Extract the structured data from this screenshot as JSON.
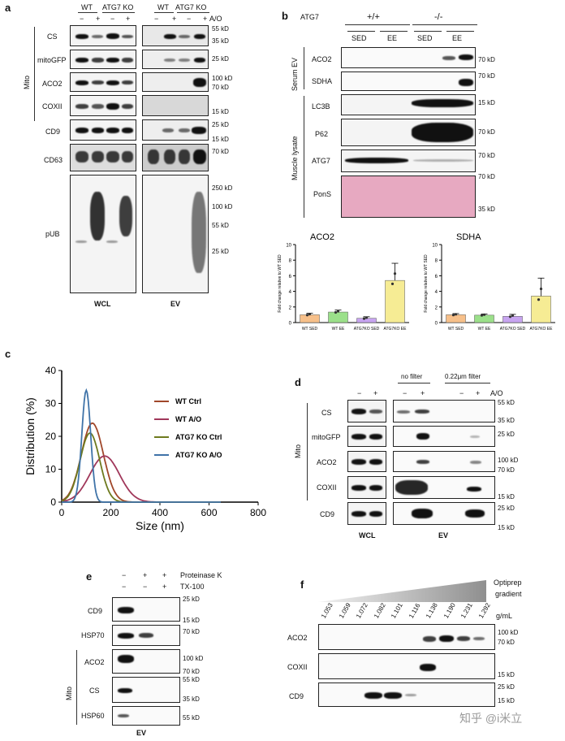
{
  "panel_labels": {
    "a": "a",
    "b": "b",
    "c": "c",
    "d": "d",
    "e": "e",
    "f": "f"
  },
  "panel_a": {
    "group_wt": "WT",
    "group_atg7ko": "ATG7 KO",
    "minus": "−",
    "plus": "+",
    "ao": "A/O",
    "mito_label": "Mito",
    "rows": [
      "CS",
      "mitoGFP",
      "ACO2",
      "COXII",
      "CD9",
      "CD63",
      "pUB"
    ],
    "markers_kd": [
      "55 kD",
      "35 kD",
      "25 kD",
      "100 kD",
      "70 kD",
      "15 kD",
      "25 kD",
      "15 kD",
      "70 kD",
      "250 kD",
      "100 kD",
      "55 kD",
      "25 kD"
    ],
    "wcl": "WCL",
    "ev": "EV"
  },
  "panel_b": {
    "atg7": "ATG7",
    "wt": "+/+",
    "ko": "-/-",
    "sed": "SED",
    "ee": "EE",
    "serum_ev": "Serum EV",
    "muscle": "Muscle lysate",
    "rows": [
      "ACO2",
      "SDHA",
      "LC3B",
      "P62",
      "ATG7",
      "PonS"
    ],
    "markers_kd": [
      "70 kD",
      "70 kD",
      "15 kD",
      "70 kD",
      "70 kD",
      "70 kD",
      "35 kD"
    ]
  },
  "chart_data": [
    {
      "type": "bar",
      "title": "ACO2",
      "categories": [
        "WT SED",
        "WT EE",
        "ATG7KO SED",
        "ATG7KO EE"
      ],
      "values": [
        1.0,
        1.35,
        0.55,
        5.4
      ],
      "errors": [
        0.2,
        0.25,
        0.2,
        2.2
      ],
      "ylabel": "Fold change relative to WT SED",
      "ylim": [
        0,
        10
      ],
      "yticks": [
        0,
        2,
        4,
        6,
        8,
        10
      ],
      "colors": [
        "#f7c08a",
        "#9be08a",
        "#c7a4f0",
        "#f6ec94"
      ]
    },
    {
      "type": "bar",
      "title": "SDHA",
      "categories": [
        "WT SED",
        "WT EE",
        "ATG7KO SED",
        "ATG7KO EE"
      ],
      "values": [
        1.0,
        0.95,
        0.8,
        3.4
      ],
      "errors": [
        0.15,
        0.15,
        0.25,
        2.3
      ],
      "ylabel": "Fold change relative to WT SED",
      "ylim": [
        0,
        10
      ],
      "yticks": [
        0,
        2,
        4,
        6,
        8,
        10
      ],
      "colors": [
        "#f7c08a",
        "#9be08a",
        "#c7a4f0",
        "#f6ec94"
      ]
    },
    {
      "type": "line",
      "title": "",
      "xlabel": "Size (nm)",
      "ylabel": "Distribution (%)",
      "xlim": [
        0,
        800
      ],
      "ylim": [
        0,
        40
      ],
      "xticks": [
        0,
        200,
        400,
        600,
        800
      ],
      "yticks": [
        0,
        10,
        20,
        30,
        40
      ],
      "series": [
        {
          "name": "WT Ctrl",
          "color": "#a0472a",
          "peak": 125,
          "height": 24,
          "sigma": 45
        },
        {
          "name": "WT A/O",
          "color": "#a0375a",
          "peak": 175,
          "height": 14,
          "sigma": 60
        },
        {
          "name": "ATG7 KO Ctrl",
          "color": "#6e7a1e",
          "peak": 115,
          "height": 21,
          "sigma": 40
        },
        {
          "name": "ATG7 KO A/O",
          "color": "#3f73a8",
          "peak": 100,
          "height": 34,
          "sigma": 18
        }
      ]
    }
  ],
  "panel_d": {
    "no_filter": "no filter",
    "filter": "0.22μm filter",
    "ao": "A/O",
    "mito": "Mito",
    "rows": [
      "CS",
      "mitoGFP",
      "ACO2",
      "COXII",
      "CD9"
    ],
    "markers_kd": [
      "55 kD",
      "35 kD",
      "25 kD",
      "100 kD",
      "70 kD",
      "15 kD",
      "25 kD",
      "15 kD"
    ],
    "wcl": "WCL",
    "ev": "EV"
  },
  "panel_e": {
    "proteinase": "Proteinase K",
    "tx100": "TX-100",
    "rows": [
      "CD9",
      "HSP70",
      "ACO2",
      "CS",
      "HSP60"
    ],
    "mito": "Mito",
    "markers_kd": [
      "25 kD",
      "15 kD",
      "70 kD",
      "100 kD",
      "70 kD",
      "55 kD",
      "35 kD",
      "55 kD"
    ],
    "ev": "EV"
  },
  "panel_f": {
    "optiprep": "Optiprep",
    "gradient": "gradient",
    "gml": "g/mL",
    "densities": [
      "1.053",
      "1.059",
      "1.072",
      "1.082",
      "1.101",
      "1.116",
      "1.138",
      "1.190",
      "1.231",
      "1.292"
    ],
    "rows": [
      "ACO2",
      "COXII",
      "CD9"
    ],
    "markers_kd": [
      "100 kD",
      "70 kD",
      "15 kD",
      "25 kD",
      "15 kD"
    ]
  },
  "watermark": "知乎 @i米立"
}
